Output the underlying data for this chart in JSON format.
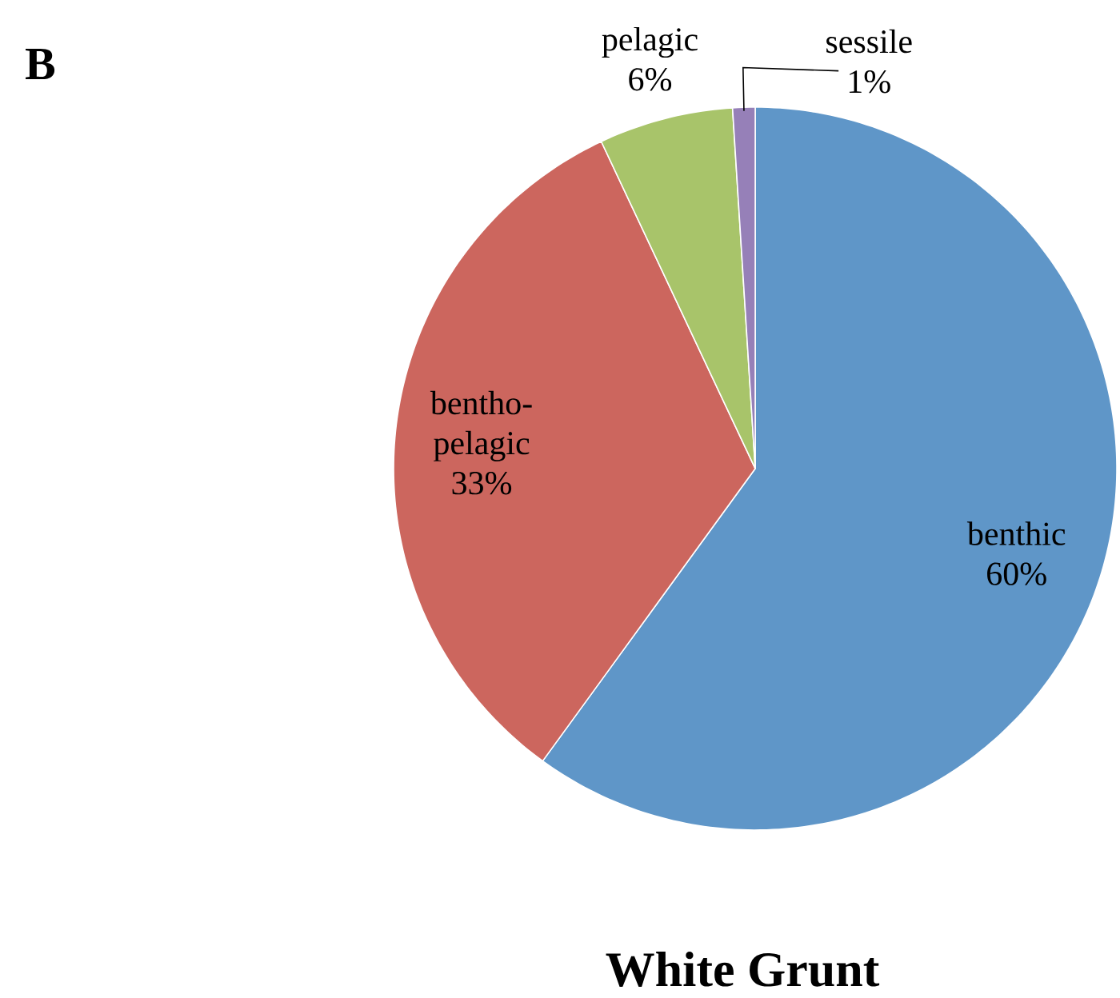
{
  "chart_data": {
    "type": "pie",
    "title": "White Grunt",
    "categories": [
      "benthic",
      "bentho-pelagic",
      "pelagic",
      "sessile"
    ],
    "values": [
      60,
      33,
      6,
      1
    ],
    "colors": [
      "#5f96c8",
      "#cc665e",
      "#a8c46a",
      "#9680b8"
    ],
    "value_labels": [
      "60%",
      "33%",
      "6%",
      "1%"
    ],
    "annotations": [
      "B"
    ]
  }
}
